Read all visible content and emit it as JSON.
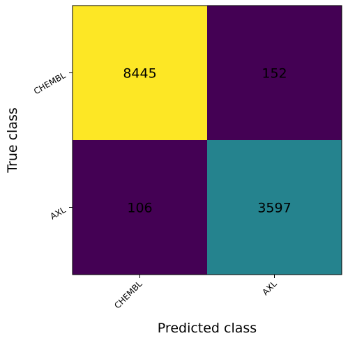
{
  "chart_data": {
    "type": "heatmap",
    "title": "",
    "xlabel": "Predicted class",
    "ylabel": "True class",
    "x_categories": [
      "CHEMBL",
      "AXL"
    ],
    "y_categories": [
      "CHEMBL",
      "AXL"
    ],
    "values": [
      [
        8445,
        152
      ],
      [
        106,
        3597
      ]
    ],
    "colormap": "viridis",
    "cell_colors": [
      [
        "#fde725",
        "#440154"
      ],
      [
        "#440154",
        "#25838e"
      ]
    ],
    "value_label_color": "#000000",
    "grid": false
  }
}
